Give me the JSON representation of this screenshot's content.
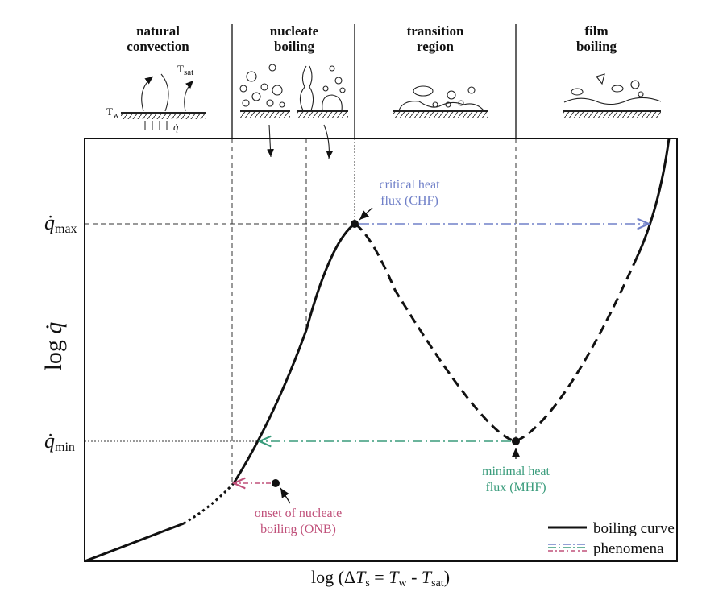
{
  "regions": [
    {
      "lines": [
        "natural",
        "convection"
      ]
    },
    {
      "lines": [
        "nucleate",
        "boiling"
      ]
    },
    {
      "lines": [
        "transition",
        "region"
      ]
    },
    {
      "lines": [
        "film",
        "boiling"
      ]
    }
  ],
  "sketch_labels": {
    "t_sat": [
      "T",
      "sat"
    ],
    "t_w": [
      "T",
      "w"
    ],
    "q": "q̇"
  },
  "y_marks": [
    {
      "symbol": "q̇",
      "sub": "max"
    },
    {
      "symbol": "q̇",
      "sub": "min"
    }
  ],
  "y_axis_label": [
    "log",
    "q̇"
  ],
  "x_axis_label": [
    "log (Δ",
    "T",
    "s",
    " = ",
    "T",
    "w",
    " - ",
    "T",
    "sat",
    ")"
  ],
  "annotations": {
    "chf": [
      "critical heat",
      "flux (CHF)"
    ],
    "mhf": [
      "minimal heat",
      "flux (MHF)"
    ],
    "onb": [
      "onset of nucleate",
      "boiling (ONB)"
    ]
  },
  "legend": [
    "boiling curve",
    "phenomena"
  ]
}
